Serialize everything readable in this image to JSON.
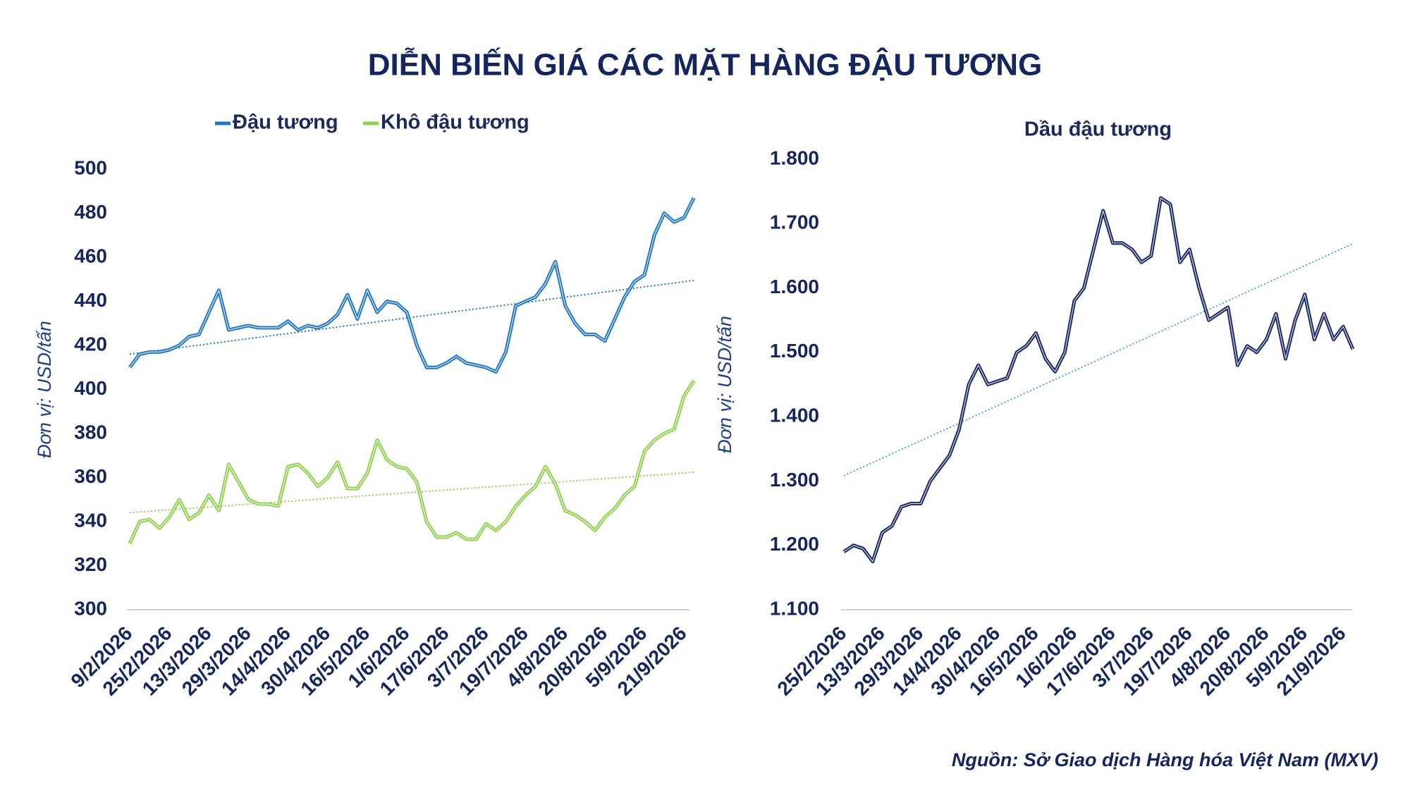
{
  "title": "DIỄN BIẾN GIÁ CÁC MẶT HÀNG ĐẬU TƯƠNG",
  "source": "Nguồn: Sở Giao dịch Hàng hóa Việt Nam (MXV)",
  "chart_data": [
    {
      "type": "line",
      "y_label": "Đơn vị: USD/tấn",
      "legend": "top",
      "trendline": true,
      "categories": [
        "9/2/2026",
        null,
        null,
        null,
        "25/2/2026",
        null,
        null,
        null,
        "13/3/2026",
        null,
        null,
        null,
        "29/3/2026",
        null,
        null,
        null,
        "14/4/2026",
        null,
        null,
        null,
        "30/4/2026",
        null,
        null,
        null,
        "16/5/2026",
        null,
        null,
        null,
        "1/6/2026",
        null,
        null,
        null,
        "17/6/2026",
        null,
        null,
        null,
        "3/7/2026",
        null,
        null,
        null,
        "19/7/2026",
        null,
        null,
        null,
        "4/8/2026",
        null,
        null,
        null,
        "20/8/2026",
        null,
        null,
        null,
        "5/9/2026",
        null,
        null,
        null,
        "21/9/2026",
        null
      ],
      "series": [
        {
          "name": "Đậu tương",
          "color": "#2176c1",
          "values": [
            410,
            416,
            417,
            417,
            418,
            420,
            424,
            425,
            435,
            445,
            427,
            428,
            429,
            428,
            428,
            428,
            431,
            427,
            429,
            428,
            430,
            434,
            443,
            432,
            445,
            435,
            440,
            439,
            435,
            420,
            410,
            410,
            412,
            415,
            412,
            411,
            410,
            408,
            417,
            438,
            440,
            442,
            448,
            458,
            438,
            430,
            425,
            425,
            422,
            432,
            442,
            449,
            452,
            470,
            480,
            476,
            478,
            487
          ]
        },
        {
          "name": "Khô đậu tương",
          "color": "#8fd14f",
          "values": [
            330,
            340,
            341,
            337,
            342,
            350,
            341,
            344,
            352,
            345,
            366,
            358,
            350,
            348,
            348,
            347,
            365,
            366,
            362,
            356,
            360,
            367,
            355,
            355,
            362,
            377,
            368,
            365,
            364,
            358,
            340,
            333,
            333,
            335,
            332,
            332,
            339,
            336,
            340,
            347,
            352,
            356,
            365,
            357,
            345,
            343,
            340,
            336,
            342,
            346,
            352,
            356,
            372,
            377,
            380,
            382,
            397,
            404
          ]
        }
      ],
      "ylim": [
        300,
        500
      ],
      "yticks": [
        300,
        320,
        340,
        360,
        380,
        400,
        420,
        440,
        460,
        480,
        500
      ]
    },
    {
      "type": "line",
      "title": "Dầu đậu tương",
      "y_label": "Đơn vị: USD/tấn",
      "trendline": true,
      "trendline_color": "#4aa3df",
      "categories": [
        "25/2/2026",
        null,
        null,
        null,
        "13/3/2026",
        null,
        null,
        null,
        "29/3/2026",
        null,
        null,
        null,
        "14/4/2026",
        null,
        null,
        null,
        "30/4/2026",
        null,
        null,
        null,
        "16/5/2026",
        null,
        null,
        null,
        "1/6/2026",
        null,
        null,
        null,
        "17/6/2026",
        null,
        null,
        null,
        "3/7/2026",
        null,
        null,
        null,
        "19/7/2026",
        null,
        null,
        null,
        "4/8/2026",
        null,
        null,
        null,
        "20/8/2026",
        null,
        null,
        null,
        "5/9/2026",
        null,
        null,
        null,
        "21/9/2026",
        null
      ],
      "series": [
        {
          "name": "Dầu đậu tương",
          "color": "#17275f",
          "values": [
            1190,
            1200,
            1195,
            1175,
            1220,
            1230,
            1260,
            1265,
            1265,
            1300,
            1320,
            1340,
            1380,
            1450,
            1480,
            1450,
            1455,
            1460,
            1500,
            1510,
            1530,
            1490,
            1470,
            1500,
            1580,
            1600,
            1660,
            1720,
            1670,
            1670,
            1660,
            1640,
            1650,
            1740,
            1730,
            1640,
            1660,
            1600,
            1550,
            1560,
            1570,
            1480,
            1510,
            1500,
            1520,
            1560,
            1490,
            1550,
            1590,
            1520,
            1560,
            1520,
            1540,
            1505
          ]
        }
      ],
      "ylim": [
        1100,
        1800
      ],
      "yticks": [
        {
          "value": 1100,
          "label": "1.100"
        },
        {
          "value": 1200,
          "label": "1.200"
        },
        {
          "value": 1300,
          "label": "1.300"
        },
        {
          "value": 1400,
          "label": "1.400"
        },
        {
          "value": 1500,
          "label": "1.500"
        },
        {
          "value": 1600,
          "label": "1.600"
        },
        {
          "value": 1700,
          "label": "1.700"
        },
        {
          "value": 1800,
          "label": "1.800"
        }
      ]
    }
  ]
}
